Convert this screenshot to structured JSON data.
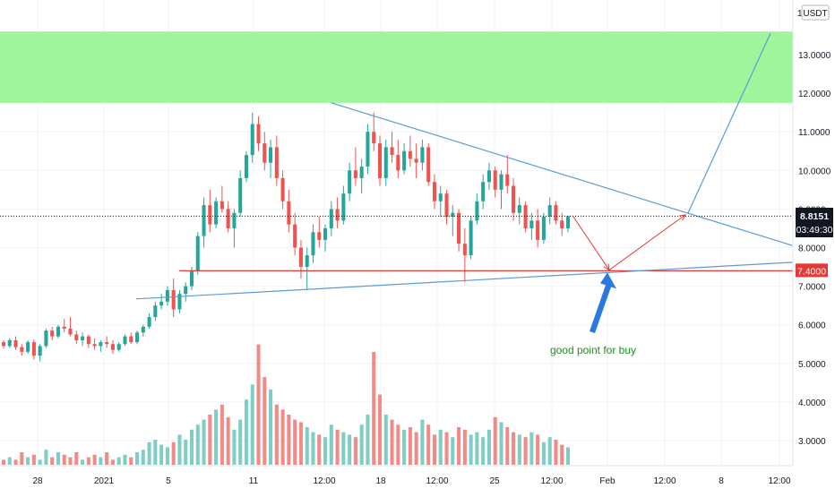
{
  "currency_badge": "USDT",
  "price_label": {
    "value": "8.8151",
    "countdown": "03:49:30"
  },
  "level_label": "7.4000",
  "annotation": "good point for buy",
  "colors": {
    "up": "#26a69a",
    "down": "#ef5350",
    "vol_up": "#7fcdc4",
    "vol_down": "#f28b86",
    "trend": "#5b9bd5",
    "support": "#e53935",
    "zone": "#9ef59c",
    "arrow_red": "#e53935",
    "arrow_blue": "#2979e0"
  },
  "chart_data": {
    "type": "candlestick",
    "y_axis": {
      "position": "right",
      "ticks": [
        "3.0000",
        "4.0000",
        "5.0000",
        "6.0000",
        "7.0000",
        "8.0000",
        "9.0000",
        "10.0000",
        "11.0000",
        "12.0000",
        "13.0000",
        "1"
      ]
    },
    "x_axis": {
      "ticks": [
        "28",
        "2021",
        "5",
        "11",
        "12:00",
        "18",
        "12:00",
        "25",
        "12:00",
        "Feb",
        "12:00",
        "8",
        "12:00"
      ]
    },
    "current_price": 8.8151,
    "support_level": 7.4,
    "resistance_zone": [
      11.75,
      13.6
    ],
    "trendlines": [
      {
        "name": "descending",
        "from": [
          "Jan 15",
          11.5
        ],
        "to": [
          "Feb 10 12:00",
          8.1
        ]
      },
      {
        "name": "ascending",
        "from": [
          "Jan 3",
          6.7
        ],
        "to": [
          "Feb 10 12:00",
          7.65
        ]
      }
    ],
    "projection_path": [
      [
        8.8,
        7.4
      ],
      [
        7.4,
        8.85
      ],
      [
        8.85,
        13.5
      ]
    ],
    "candles": [
      [
        5.55,
        5.6,
        5.38,
        5.45
      ],
      [
        5.45,
        5.65,
        5.4,
        5.6
      ],
      [
        5.6,
        5.7,
        5.35,
        5.42
      ],
      [
        5.42,
        5.5,
        5.2,
        5.3
      ],
      [
        5.3,
        5.6,
        5.25,
        5.55
      ],
      [
        5.55,
        5.62,
        5.1,
        5.2
      ],
      [
        5.2,
        5.5,
        5.05,
        5.45
      ],
      [
        5.45,
        5.9,
        5.4,
        5.85
      ],
      [
        5.85,
        5.95,
        5.6,
        5.7
      ],
      [
        5.7,
        6.0,
        5.65,
        5.95
      ],
      [
        5.95,
        6.15,
        5.8,
        5.9
      ],
      [
        5.9,
        6.2,
        5.7,
        5.75
      ],
      [
        5.75,
        5.85,
        5.5,
        5.6
      ],
      [
        5.6,
        5.8,
        5.45,
        5.7
      ],
      [
        5.7,
        5.75,
        5.4,
        5.5
      ],
      [
        5.5,
        5.65,
        5.35,
        5.45
      ],
      [
        5.45,
        5.6,
        5.3,
        5.55
      ],
      [
        5.55,
        5.7,
        5.4,
        5.5
      ],
      [
        5.5,
        5.6,
        5.25,
        5.35
      ],
      [
        5.35,
        5.55,
        5.3,
        5.5
      ],
      [
        5.5,
        5.75,
        5.45,
        5.7
      ],
      [
        5.7,
        5.8,
        5.5,
        5.55
      ],
      [
        5.55,
        5.85,
        5.5,
        5.8
      ],
      [
        5.8,
        6.0,
        5.7,
        5.95
      ],
      [
        5.95,
        6.3,
        5.9,
        6.2
      ],
      [
        6.2,
        6.6,
        6.1,
        6.5
      ],
      [
        6.5,
        6.8,
        6.4,
        6.6
      ],
      [
        6.6,
        7.0,
        6.5,
        6.9
      ],
      [
        6.9,
        7.2,
        6.2,
        6.4
      ],
      [
        6.4,
        6.9,
        6.3,
        6.8
      ],
      [
        6.8,
        7.1,
        6.6,
        7.0
      ],
      [
        7.0,
        7.5,
        6.9,
        7.4
      ],
      [
        7.4,
        8.4,
        7.3,
        8.3
      ],
      [
        8.3,
        9.3,
        8.0,
        9.1
      ],
      [
        9.1,
        9.5,
        8.4,
        8.6
      ],
      [
        8.6,
        9.3,
        8.5,
        9.2
      ],
      [
        9.2,
        9.6,
        8.9,
        9.0
      ],
      [
        9.0,
        9.2,
        8.4,
        8.5
      ],
      [
        8.5,
        9.0,
        8.0,
        8.9
      ],
      [
        8.9,
        10.0,
        8.8,
        9.8
      ],
      [
        9.8,
        10.5,
        9.7,
        10.4
      ],
      [
        10.4,
        11.5,
        10.2,
        11.2
      ],
      [
        11.2,
        11.4,
        10.5,
        10.7
      ],
      [
        10.7,
        11.0,
        10.0,
        10.2
      ],
      [
        10.2,
        10.8,
        9.8,
        10.6
      ],
      [
        10.6,
        10.9,
        9.6,
        9.8
      ],
      [
        9.8,
        10.0,
        9.0,
        9.2
      ],
      [
        9.2,
        9.5,
        8.4,
        8.6
      ],
      [
        8.6,
        8.9,
        7.8,
        8.0
      ],
      [
        8.0,
        8.2,
        7.2,
        7.5
      ],
      [
        7.5,
        8.0,
        6.9,
        7.8
      ],
      [
        7.8,
        8.6,
        7.6,
        8.4
      ],
      [
        8.4,
        8.8,
        8.0,
        8.2
      ],
      [
        8.2,
        8.6,
        7.9,
        8.5
      ],
      [
        8.5,
        9.2,
        8.3,
        9.0
      ],
      [
        9.0,
        9.3,
        8.5,
        8.7
      ],
      [
        8.7,
        9.6,
        8.6,
        9.4
      ],
      [
        9.4,
        10.2,
        9.2,
        10.0
      ],
      [
        10.0,
        10.6,
        9.6,
        9.8
      ],
      [
        9.8,
        10.3,
        9.4,
        10.1
      ],
      [
        10.1,
        11.2,
        9.9,
        11.0
      ],
      [
        11.0,
        11.5,
        10.5,
        10.7
      ],
      [
        10.7,
        10.9,
        9.6,
        9.8
      ],
      [
        9.8,
        10.8,
        9.6,
        10.6
      ],
      [
        10.6,
        11.0,
        10.2,
        10.4
      ],
      [
        10.4,
        10.8,
        9.8,
        10.0
      ],
      [
        10.0,
        10.7,
        9.9,
        10.5
      ],
      [
        10.5,
        10.9,
        10.1,
        10.3
      ],
      [
        10.3,
        10.7,
        9.8,
        10.2
      ],
      [
        10.2,
        10.8,
        10.0,
        10.6
      ],
      [
        10.6,
        10.7,
        9.6,
        9.7
      ],
      [
        9.7,
        9.9,
        9.0,
        9.2
      ],
      [
        9.2,
        9.6,
        8.8,
        9.4
      ],
      [
        9.4,
        9.5,
        8.6,
        8.8
      ],
      [
        8.8,
        9.1,
        8.3,
        8.9
      ],
      [
        8.9,
        9.0,
        7.9,
        8.1
      ],
      [
        8.1,
        8.5,
        7.1,
        7.8
      ],
      [
        7.8,
        8.8,
        7.7,
        8.7
      ],
      [
        8.7,
        9.4,
        8.6,
        9.2
      ],
      [
        9.2,
        9.9,
        9.0,
        9.7
      ],
      [
        9.7,
        10.2,
        9.5,
        10.0
      ],
      [
        10.0,
        10.1,
        9.3,
        9.5
      ],
      [
        9.5,
        10.0,
        9.0,
        9.9
      ],
      [
        9.9,
        10.4,
        9.4,
        9.6
      ],
      [
        9.6,
        9.8,
        8.7,
        8.9
      ],
      [
        8.9,
        9.3,
        8.6,
        9.1
      ],
      [
        9.1,
        9.2,
        8.4,
        8.5
      ],
      [
        8.5,
        8.9,
        8.2,
        8.7
      ],
      [
        8.7,
        9.0,
        8.0,
        8.2
      ],
      [
        8.2,
        8.9,
        8.1,
        8.8
      ],
      [
        8.8,
        9.3,
        8.6,
        9.1
      ],
      [
        9.1,
        9.2,
        8.6,
        8.7
      ],
      [
        8.7,
        8.9,
        8.3,
        8.5
      ],
      [
        8.5,
        8.8,
        8.4,
        8.8151
      ]
    ],
    "volume": [
      0.02,
      0.03,
      0.02,
      0.05,
      0.03,
      0.04,
      0.02,
      0.06,
      0.03,
      0.05,
      0.04,
      0.03,
      0.05,
      0.02,
      0.03,
      0.04,
      0.03,
      0.05,
      0.02,
      0.03,
      0.04,
      0.03,
      0.05,
      0.06,
      0.09,
      0.1,
      0.08,
      0.07,
      0.09,
      0.12,
      0.1,
      0.14,
      0.16,
      0.18,
      0.2,
      0.22,
      0.24,
      0.19,
      0.14,
      0.18,
      0.26,
      0.32,
      0.48,
      0.35,
      0.3,
      0.24,
      0.22,
      0.2,
      0.18,
      0.17,
      0.15,
      0.13,
      0.12,
      0.11,
      0.16,
      0.14,
      0.13,
      0.12,
      0.11,
      0.16,
      0.2,
      0.45,
      0.28,
      0.2,
      0.18,
      0.16,
      0.14,
      0.15,
      0.13,
      0.18,
      0.16,
      0.12,
      0.14,
      0.13,
      0.11,
      0.15,
      0.14,
      0.12,
      0.13,
      0.11,
      0.14,
      0.19,
      0.17,
      0.15,
      0.13,
      0.12,
      0.11,
      0.13,
      0.12,
      0.09,
      0.11,
      0.1,
      0.08,
      0.07
    ]
  }
}
